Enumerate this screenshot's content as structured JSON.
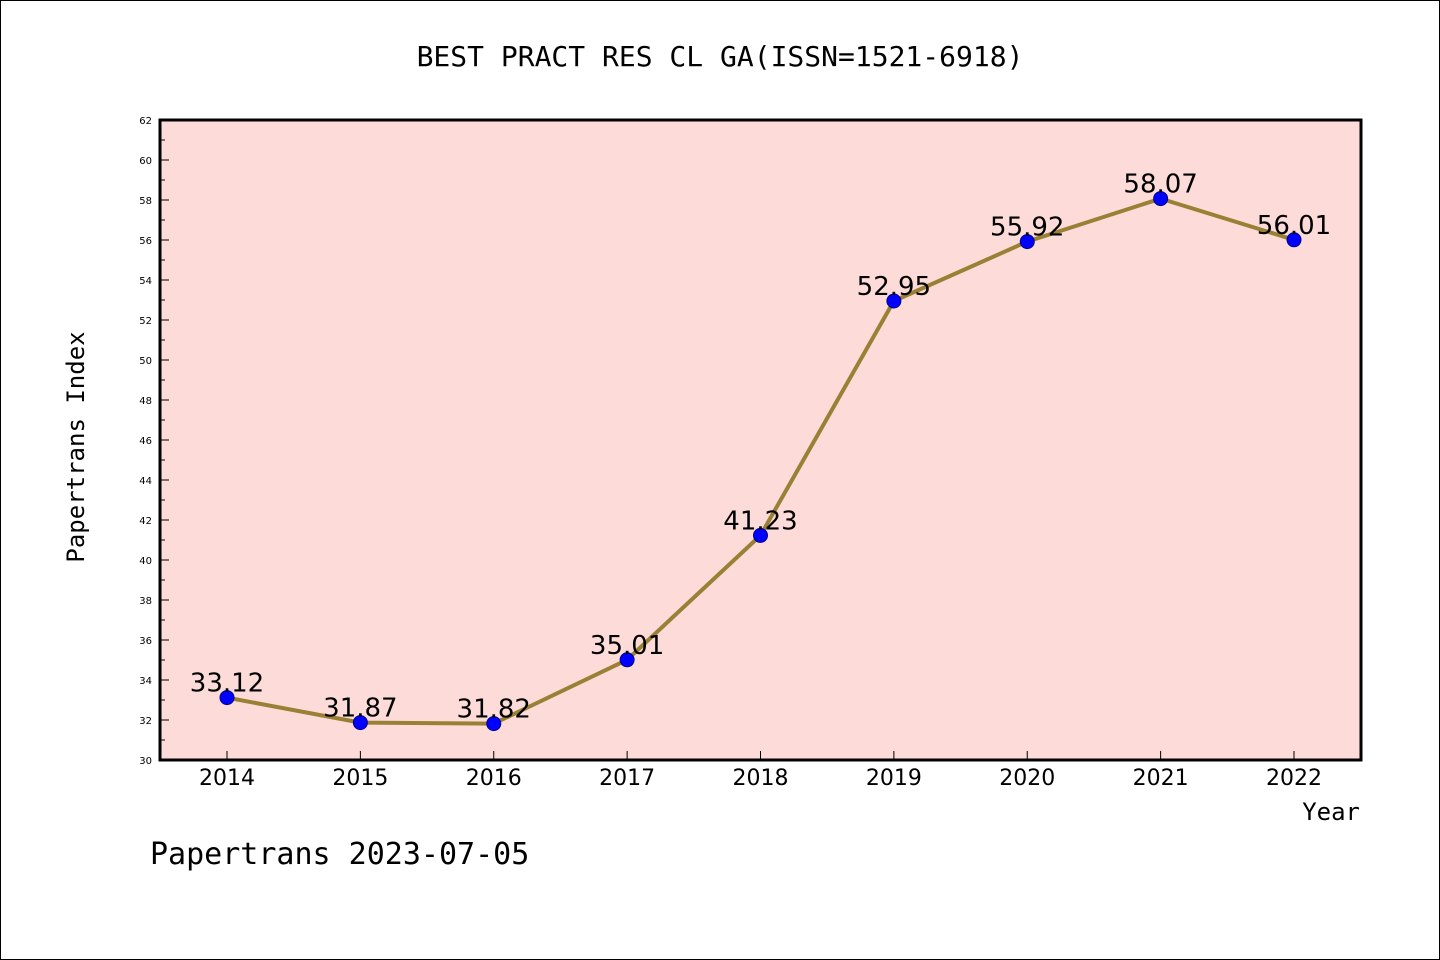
{
  "chart_data": {
    "type": "line",
    "title": "BEST PRACT RES CL GA(ISSN=1521-6918)",
    "xlabel": "Year",
    "ylabel": "Papertrans Index",
    "categories": [
      "2014",
      "2015",
      "2016",
      "2017",
      "2018",
      "2019",
      "2020",
      "2021",
      "2022"
    ],
    "series": [
      {
        "values": [
          33.12,
          31.87,
          31.82,
          35.01,
          41.23,
          52.95,
          55.92,
          58.07,
          56.01
        ],
        "labels": [
          "33.12",
          "31.87",
          "31.82",
          "35.01",
          "41.23",
          "52.95",
          "55.92",
          "58.07",
          "56.01"
        ]
      }
    ],
    "ylim": [
      30,
      62
    ],
    "yticks": [
      "30",
      "32",
      "34",
      "36",
      "38",
      "40",
      "42",
      "44",
      "46",
      "48",
      "50",
      "52",
      "54",
      "56",
      "58",
      "60",
      "62"
    ],
    "grid": false,
    "legend": "none"
  },
  "footer": "Papertrans 2023-07-05",
  "colors": {
    "plot_background": "#fddbd8",
    "line": "#9a8035",
    "marker": "#0000ff",
    "text": "#000000"
  }
}
